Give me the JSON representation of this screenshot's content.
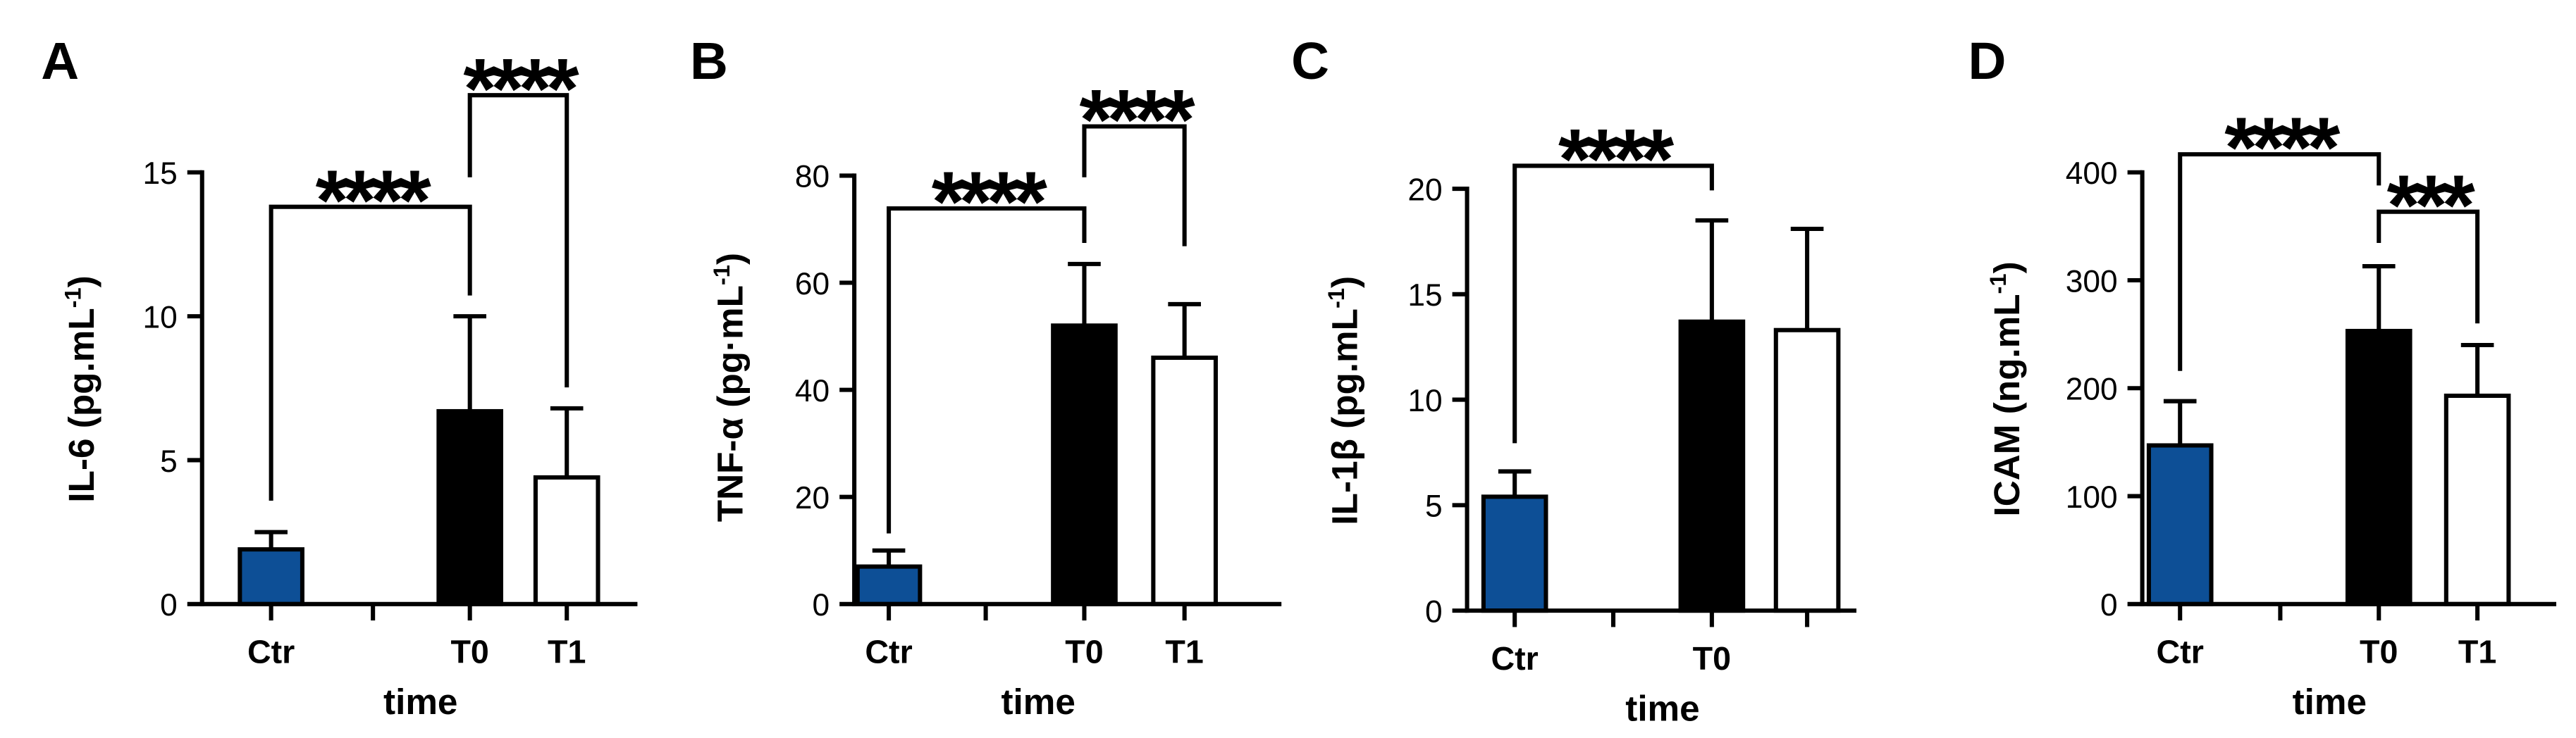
{
  "figure": {
    "background": "#ffffff"
  },
  "chart_data": [
    {
      "type": "bar",
      "title": "A",
      "ylabel": {
        "text": "IL-6 (pg.mL",
        "sup": "-1",
        "close": ")"
      },
      "xlabel": "time",
      "categories": [
        "Ctr",
        null,
        "T0",
        "T1"
      ],
      "values": [
        1.9,
        null,
        6.7,
        4.4
      ],
      "error_top": [
        2.5,
        null,
        10.0,
        6.8
      ],
      "bar_colors": [
        "#0d4f96",
        null,
        "#000000",
        "#ffffff"
      ],
      "ylim": [
        0,
        15
      ],
      "yticks": [
        0,
        5,
        10,
        15
      ],
      "comparisons": [
        {
          "from": 0,
          "to": 2,
          "label": "****"
        },
        {
          "from": 2,
          "to": 3,
          "label": "****"
        }
      ]
    },
    {
      "type": "bar",
      "title": "B",
      "ylabel": {
        "text": "TNF-α (pg·mL",
        "sup": "-1",
        "close": ")"
      },
      "xlabel": "time",
      "categories": [
        "Ctr",
        null,
        "T0",
        "T1"
      ],
      "values": [
        7.0,
        null,
        52.0,
        46.0
      ],
      "error_top": [
        10.0,
        null,
        63.5,
        56.0
      ],
      "bar_colors": [
        "#0d4f96",
        null,
        "#000000",
        "#ffffff"
      ],
      "ylim": [
        0,
        80
      ],
      "yticks": [
        0,
        20,
        40,
        60,
        80
      ],
      "comparisons": [
        {
          "from": 0,
          "to": 2,
          "label": "****"
        },
        {
          "from": 2,
          "to": 3,
          "label": "****"
        }
      ]
    },
    {
      "type": "bar",
      "title": "C",
      "ylabel": {
        "text": "IL-1β (pg.mL",
        "sup": "-1",
        "close": ")"
      },
      "xlabel": "time",
      "categories": [
        "Ctr",
        null,
        "T0",
        null
      ],
      "values": [
        5.4,
        null,
        13.7,
        13.3
      ],
      "error_top": [
        6.6,
        null,
        18.5,
        18.1
      ],
      "bar_colors": [
        "#0d4f96",
        null,
        "#000000",
        "#ffffff"
      ],
      "ylim": [
        0,
        20
      ],
      "yticks": [
        0,
        5,
        10,
        15,
        20
      ],
      "comparisons": [
        {
          "from": 0,
          "to": 2,
          "label": "****"
        }
      ]
    },
    {
      "type": "bar",
      "title": "D",
      "ylabel": {
        "text": "ICAM (ng.mL",
        "sup": "-1",
        "close": ")"
      },
      "xlabel": "time",
      "categories": [
        "Ctr",
        null,
        "T0",
        "T1"
      ],
      "values": [
        147,
        null,
        253,
        193
      ],
      "error_top": [
        188,
        null,
        313,
        240
      ],
      "bar_colors": [
        "#0d4f96",
        null,
        "#000000",
        "#ffffff"
      ],
      "ylim": [
        0,
        400
      ],
      "yticks": [
        0,
        100,
        200,
        300,
        400
      ],
      "comparisons": [
        {
          "from": 0,
          "to": 2,
          "label": "****"
        },
        {
          "from": 2,
          "to": 3,
          "label": "***"
        }
      ]
    }
  ]
}
